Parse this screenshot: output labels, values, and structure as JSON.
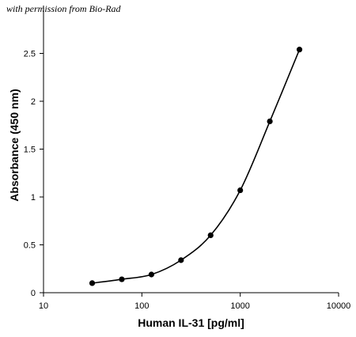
{
  "credit": "with permission from Bio-Rad",
  "colors": {
    "line": "#000000",
    "axis": "#000000",
    "background": "#ffffff"
  },
  "chart_data": {
    "type": "line",
    "title": "",
    "xlabel": "Human IL-31 [pg/ml]",
    "ylabel": "Absorbance (450 nm)",
    "x_scale": "log",
    "xlim": [
      10,
      10000
    ],
    "ylim": [
      0,
      3.0
    ],
    "x_ticks": [
      10,
      100,
      1000,
      10000
    ],
    "x_tick_labels": [
      "10",
      "100",
      "1000",
      "10000"
    ],
    "y_ticks": [
      0,
      0.5,
      1,
      1.5,
      2,
      2.5
    ],
    "y_tick_labels": [
      "0",
      "0.5",
      "1",
      "1.5",
      "2",
      "2.5"
    ],
    "grid": false,
    "legend": "none",
    "smooth": true,
    "markers": "filled-circle",
    "series": [
      {
        "x": [
          31.25,
          62.5,
          125,
          250,
          500,
          1000,
          2000,
          4000
        ],
        "y": [
          0.1,
          0.14,
          0.19,
          0.34,
          0.6,
          1.07,
          1.79,
          2.54
        ]
      }
    ]
  }
}
